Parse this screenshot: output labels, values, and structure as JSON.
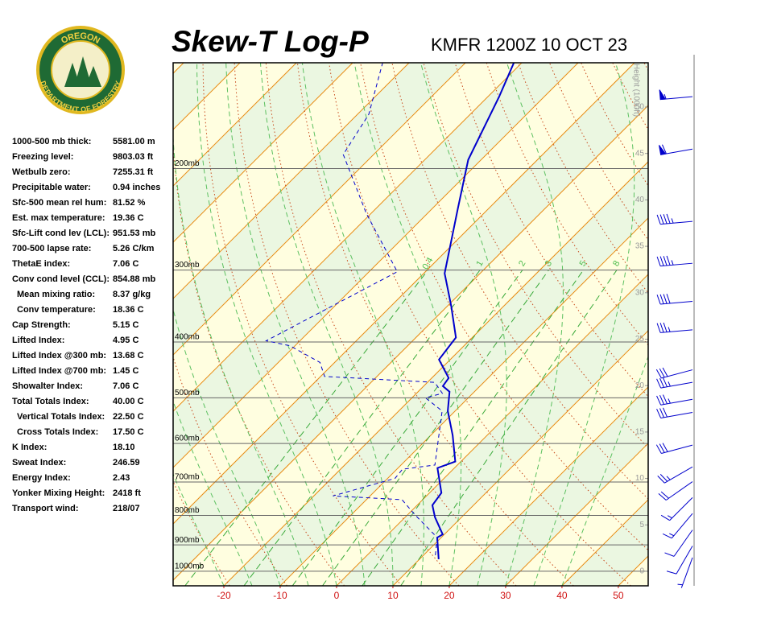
{
  "chart_data": {
    "type": "skewt",
    "title": "Skew-T Log-P",
    "subtitle": "KMFR 1200Z 10 OCT 23",
    "xlim": [
      -29,
      55.3
    ],
    "xticks": [
      -20,
      -10,
      0,
      10,
      20,
      30,
      40,
      50
    ],
    "ylim": [
      1060,
      131
    ],
    "log_y": true,
    "yticks": [
      {
        "value": 1000,
        "label": "1000mb"
      },
      {
        "value": 900,
        "label": "900mb"
      },
      {
        "value": 800,
        "label": "800mb"
      },
      {
        "value": 700,
        "label": "700mb"
      },
      {
        "value": 600,
        "label": "600mb"
      },
      {
        "value": 500,
        "label": "500mb"
      },
      {
        "value": 400,
        "label": "400mb"
      },
      {
        "value": 300,
        "label": "300mb"
      },
      {
        "value": 200,
        "label": "200mb"
      }
    ],
    "height_label": "Height (1000ft)",
    "height_lim": [
      0,
      50
    ],
    "height_ticks": [
      0,
      5,
      10,
      15,
      20,
      25,
      30,
      35,
      40,
      45,
      50
    ],
    "mixing_ratio_lines": [
      0.4,
      1,
      2,
      3,
      5,
      8
    ],
    "series": [
      {
        "color": "#0000cc",
        "dashed": false,
        "pressure": [
          953,
          874,
          863,
          806,
          768,
          731,
          662,
          645,
          581,
          527,
          488,
          477,
          462,
          429,
          393,
          346,
          304,
          235,
          193,
          150,
          131
        ],
        "values": [
          13.4,
          9.3,
          9.7,
          5.3,
          2.7,
          2.1,
          -3.0,
          -1.0,
          -6.1,
          -11.3,
          -14.4,
          -16.6,
          -17.0,
          -22.0,
          -22.9,
          -29.4,
          -36.3,
          -45.4,
          -52.3,
          -58.0,
          -61.4
        ]
      },
      {
        "color": "#0000cc",
        "dashed": true,
        "pressure": [
          938,
          874,
          798,
          751,
          740,
          690,
          665,
          654,
          527,
          500,
          491,
          470,
          459,
          434,
          406,
          398,
          302,
          239,
          189,
          161,
          131
        ],
        "values": [
          12.1,
          9.3,
          1.3,
          -3.7,
          -16.6,
          -8.7,
          -9.0,
          -4.0,
          -12.3,
          -17.6,
          -15.4,
          -18.7,
          -39.3,
          -42.6,
          -50.9,
          -56.0,
          -45.0,
          -60.9,
          -75.4,
          -78.0,
          -84.7
        ]
      }
    ],
    "winds": {
      "color": "#0000cc",
      "pressure": [
        150,
        185,
        247,
        292,
        340,
        381,
        447,
        470,
        503,
        530,
        604,
        659,
        699,
        745,
        794,
        848,
        904,
        947
      ],
      "direction": [
        265,
        260,
        265,
        265,
        265,
        265,
        255,
        260,
        260,
        260,
        255,
        240,
        235,
        225,
        220,
        215,
        210,
        200
      ],
      "speed": [
        55,
        60,
        45,
        45,
        40,
        35,
        30,
        35,
        35,
        30,
        30,
        25,
        20,
        15,
        15,
        10,
        10,
        5
      ]
    }
  },
  "logo": {
    "top": "OREGON",
    "bottom": "DEPARTMENT OF FORESTRY"
  },
  "stats": [
    {
      "label": "1000-500 mb thick:",
      "value": "5581.00 m"
    },
    {
      "label": "Freezing level:",
      "value": "9803.03 ft"
    },
    {
      "label": "Wetbulb zero:",
      "value": "7255.31 ft"
    },
    {
      "label": "Precipitable water:",
      "value": "0.94 inches"
    },
    {
      "label": "Sfc-500 mean rel hum:",
      "value": "81.52 %"
    },
    {
      "label": "Est. max temperature:",
      "value": "19.36 C"
    },
    {
      "label": "Sfc-Lift cond lev (LCL):",
      "value": "951.53 mb"
    },
    {
      "label": "700-500 lapse rate:",
      "value": "5.26 C/km"
    },
    {
      "label": "ThetaE index:",
      "value": "7.06 C"
    },
    {
      "label": "Conv cond level (CCL):",
      "value": "854.88 mb"
    },
    {
      "label": "Mean mixing ratio:",
      "value": "8.37 g/kg"
    },
    {
      "label": "Conv temperature:",
      "value": "18.36 C"
    },
    {
      "label": "Cap Strength:",
      "value": "5.15 C"
    },
    {
      "label": "Lifted Index:",
      "value": "4.95 C"
    },
    {
      "label": "Lifted Index @300 mb:",
      "value": "13.68 C"
    },
    {
      "label": "Lifted Index @700 mb:",
      "value": "1.45 C"
    },
    {
      "label": "Showalter Index:",
      "value": "7.06 C"
    },
    {
      "label": "Total Totals Index:",
      "value": "40.00 C"
    },
    {
      "label": "Vertical Totals Index:",
      "value": "22.50 C"
    },
    {
      "label": "Cross Totals Index:",
      "value": "17.50 C"
    },
    {
      "label": "K Index:",
      "value": "18.10"
    },
    {
      "label": "Sweat Index:",
      "value": "246.59"
    },
    {
      "label": "Energy Index:",
      "value": "2.43"
    },
    {
      "label": "Yonker Mixing Height:",
      "value": "2418 ft"
    },
    {
      "label": "Transport wind:",
      "value": "218/07"
    }
  ]
}
